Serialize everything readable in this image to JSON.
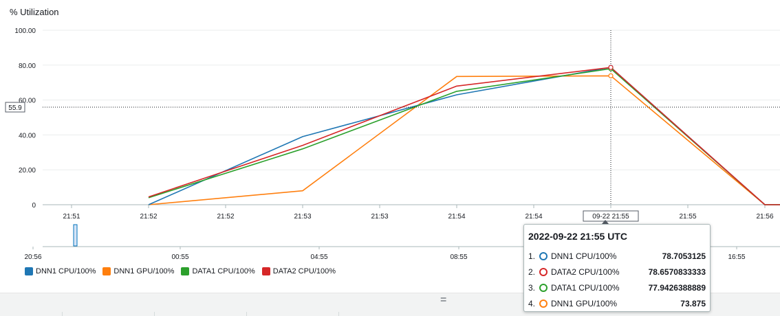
{
  "chart_data": {
    "type": "line",
    "ylabel": "% Utilization",
    "ylim": [
      0,
      100
    ],
    "yticks": [
      "100.00",
      "80.00",
      "60.00",
      "40.00",
      "20.00",
      "0"
    ],
    "xtick_labels": [
      "21:51",
      "21:52",
      "21:52",
      "21:53",
      "21:53",
      "21:54",
      "21:54",
      "09-22 21:55",
      "21:55",
      "21:56"
    ],
    "series": [
      {
        "name": "DNN1 CPU/100%",
        "color": "#1f77b4",
        "points": [
          [
            1,
            0
          ],
          [
            3,
            39
          ],
          [
            5,
            63
          ],
          [
            7,
            78.7053125
          ],
          [
            9,
            0
          ],
          [
            9.25,
            0
          ]
        ]
      },
      {
        "name": "DNN1 GPU/100%",
        "color": "#ff7f0e",
        "points": [
          [
            1,
            0
          ],
          [
            3,
            8
          ],
          [
            5,
            73.5
          ],
          [
            7,
            73.875
          ],
          [
            9,
            0
          ],
          [
            9.25,
            0
          ]
        ]
      },
      {
        "name": "DATA1 CPU/100%",
        "color": "#2ca02c",
        "points": [
          [
            1,
            4
          ],
          [
            3,
            32
          ],
          [
            5,
            65
          ],
          [
            7,
            77.9426388889
          ],
          [
            9,
            0
          ],
          [
            9.25,
            0
          ]
        ]
      },
      {
        "name": "DATA2 CPU/100%",
        "color": "#d62728",
        "points": [
          [
            1,
            4.5
          ],
          [
            3,
            34
          ],
          [
            5,
            68
          ],
          [
            7,
            78.6570833333
          ],
          [
            9,
            0
          ],
          [
            9.25,
            0
          ]
        ]
      }
    ],
    "crosshair": {
      "x": 7,
      "y": 55.9,
      "y_label": "55.9"
    },
    "navigator": {
      "tick_labels": [
        "20:56",
        "00:55",
        "04:55",
        "08:55",
        "16:55"
      ],
      "tick_positions": [
        0,
        0.18,
        0.36,
        0.54,
        0.9
      ]
    },
    "legend_position": "bottom-left"
  },
  "tooltip": {
    "title": "2022-09-22 21:55 UTC",
    "rows": [
      {
        "idx": "1.",
        "name": "DNN1 CPU/100%",
        "value": "78.7053125",
        "color": "#1f77b4"
      },
      {
        "idx": "2.",
        "name": "DATA2 CPU/100%",
        "value": "78.6570833333",
        "color": "#d62728"
      },
      {
        "idx": "3.",
        "name": "DATA1 CPU/100%",
        "value": "77.9426388889",
        "color": "#2ca02c"
      },
      {
        "idx": "4.",
        "name": "DNN1 GPU/100%",
        "value": "73.875",
        "color": "#ff7f0e"
      }
    ]
  },
  "bottom_bar": {
    "grip": "="
  }
}
